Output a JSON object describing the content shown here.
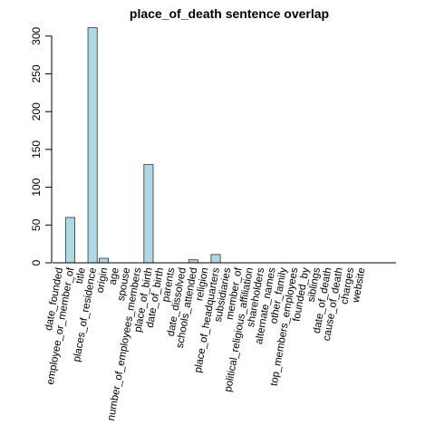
{
  "chart_data": {
    "type": "bar",
    "title": "place_of_death sentence overlap",
    "xlabel": "",
    "ylabel": "",
    "ylim": [
      0,
      310
    ],
    "yticks": [
      0,
      50,
      100,
      150,
      200,
      250,
      300
    ],
    "grid": false,
    "colors": {
      "bar_fill": "#add8e6",
      "bar_stroke": "#333333"
    },
    "categories": [
      "date_founded",
      "employee_or_member_of",
      "title",
      "places_of_residence",
      "origin",
      "age",
      "spouse",
      "number_of_employees_members",
      "place_of_birth",
      "date_of_birth",
      "parents",
      "date_dissolved",
      "schools_attended",
      "religion",
      "place_of_headquarters",
      "subsidiaries",
      "member_of",
      "political_religious_affiliation",
      "shareholders",
      "alternate_names",
      "other_family",
      "top_members_employees",
      "founded_by",
      "siblings",
      "date_of_death",
      "cause_of_death",
      "charges",
      "website"
    ],
    "values": [
      0,
      60,
      0,
      311,
      6,
      0,
      0,
      0,
      130,
      0,
      0,
      0,
      4,
      0,
      11,
      0,
      0,
      0,
      0,
      0,
      0,
      0,
      0,
      0,
      0,
      0,
      0,
      0
    ]
  }
}
